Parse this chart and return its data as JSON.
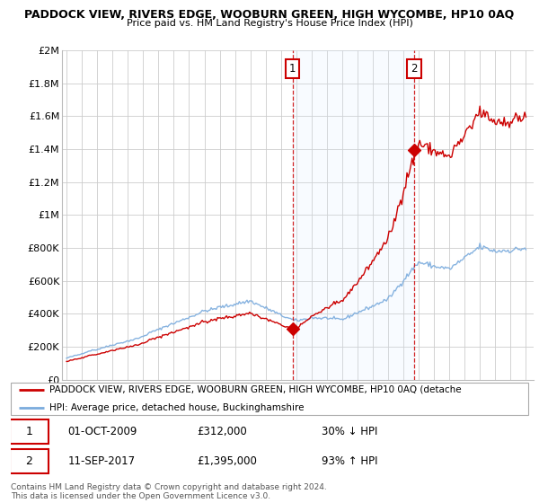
{
  "title": "PADDOCK VIEW, RIVERS EDGE, WOOBURN GREEN, HIGH WYCOMBE, HP10 0AQ",
  "subtitle": "Price paid vs. HM Land Registry's House Price Index (HPI)",
  "legend_line1": "PADDOCK VIEW, RIVERS EDGE, WOOBURN GREEN, HIGH WYCOMBE, HP10 0AQ (detache",
  "legend_line2": "HPI: Average price, detached house, Buckinghamshire",
  "sale1_date": "01-OCT-2009",
  "sale1_price": "£312,000",
  "sale1_hpi": "30% ↓ HPI",
  "sale1_year": 2009.75,
  "sale1_value": 312000,
  "sale2_date": "11-SEP-2017",
  "sale2_price": "£1,395,000",
  "sale2_hpi": "93% ↑ HPI",
  "sale2_year": 2017.7,
  "sale2_value": 1395000,
  "footer": "Contains HM Land Registry data © Crown copyright and database right 2024.\nThis data is licensed under the Open Government Licence v3.0.",
  "hpi_color": "#7aabdd",
  "price_color": "#cc0000",
  "vline_color": "#cc0000",
  "bg_color": "#ffffff",
  "grid_color": "#cccccc",
  "ylim_max": 2000000,
  "span_color": "#ddeeff"
}
